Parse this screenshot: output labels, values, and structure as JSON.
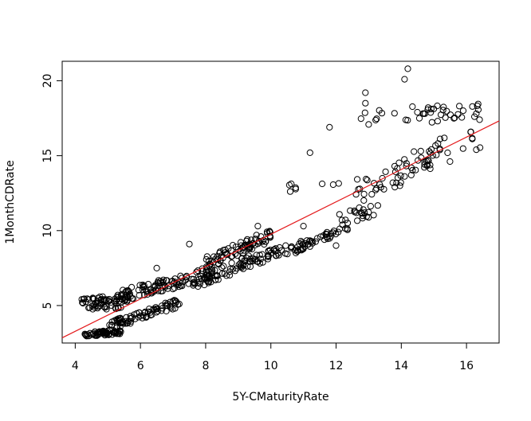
{
  "chart_data": {
    "type": "scatter",
    "xlabel": "5Y-CMaturityRate",
    "ylabel": "1MonthCDRate",
    "xlim": [
      3.6,
      17.0
    ],
    "ylim": [
      2.5,
      21.3
    ],
    "xticks": [
      4,
      6,
      8,
      10,
      12,
      14,
      16
    ],
    "yticks": [
      5,
      10,
      15,
      20
    ],
    "grid": false,
    "point_marker": "open-circle",
    "regression_line": {
      "color": "#e41a1c",
      "intercept": -1.04,
      "slope": 1.08
    },
    "clusters": [
      {
        "x": [
          4.2,
          5.4
        ],
        "y_at_x0": 3.05,
        "y_at_x1": 3.25,
        "spread": 0.15,
        "n": 60
      },
      {
        "x": [
          5.0,
          7.2
        ],
        "y_at_x0": 3.6,
        "y_at_x1": 5.2,
        "spread": 0.3,
        "n": 80
      },
      {
        "x": [
          4.2,
          5.6
        ],
        "y_at_x0": 5.3,
        "y_at_x1": 5.5,
        "spread": 0.25,
        "n": 45
      },
      {
        "x": [
          4.4,
          5.4
        ],
        "y_at_x0": 4.9,
        "y_at_x1": 4.9,
        "spread": 0.15,
        "n": 20
      },
      {
        "x": [
          5.4,
          8.2
        ],
        "y_at_x0": 5.6,
        "y_at_x1": 7.2,
        "spread": 0.45,
        "n": 110
      },
      {
        "x": [
          7.6,
          9.6
        ],
        "y_at_x0": 6.4,
        "y_at_x1": 8.2,
        "spread": 0.4,
        "n": 60
      },
      {
        "x": [
          8.0,
          10.0
        ],
        "y_at_x0": 7.8,
        "y_at_x1": 9.7,
        "spread": 0.45,
        "n": 80
      },
      {
        "x": [
          9.4,
          11.0
        ],
        "y_at_x0": 8.0,
        "y_at_x1": 9.0,
        "spread": 0.35,
        "n": 45
      },
      {
        "x": [
          10.8,
          12.4
        ],
        "y_at_x0": 8.8,
        "y_at_x1": 10.3,
        "spread": 0.3,
        "n": 40
      },
      {
        "x": [
          12.0,
          13.4
        ],
        "y_at_x0": 10.6,
        "y_at_x1": 11.6,
        "spread": 0.45,
        "n": 22
      },
      {
        "x": [
          10.4,
          12.2
        ],
        "y_at_x0": 12.8,
        "y_at_x1": 13.2,
        "spread": 0.3,
        "n": 8
      },
      {
        "x": [
          12.6,
          15.2
        ],
        "y_at_x0": 12.6,
        "y_at_x1": 15.0,
        "spread": 0.9,
        "n": 55
      },
      {
        "x": [
          12.6,
          16.4
        ],
        "y_at_x0": 17.4,
        "y_at_x1": 18.0,
        "spread": 0.6,
        "n": 40
      },
      {
        "x": [
          14.2,
          16.5
        ],
        "y_at_x0": 14.8,
        "y_at_x1": 16.0,
        "spread": 0.9,
        "n": 14
      }
    ],
    "outliers": [
      {
        "x": 14.1,
        "y": 20.1
      },
      {
        "x": 14.2,
        "y": 20.8
      },
      {
        "x": 11.8,
        "y": 16.9
      },
      {
        "x": 11.2,
        "y": 15.2
      },
      {
        "x": 12.9,
        "y": 19.2
      },
      {
        "x": 12.9,
        "y": 18.5
      },
      {
        "x": 12.0,
        "y": 9.0
      },
      {
        "x": 6.5,
        "y": 7.5
      },
      {
        "x": 7.5,
        "y": 9.1
      },
      {
        "x": 9.6,
        "y": 10.3
      },
      {
        "x": 11.0,
        "y": 10.3
      },
      {
        "x": 15.9,
        "y": 18.0
      },
      {
        "x": 16.3,
        "y": 17.8
      },
      {
        "x": 16.3,
        "y": 15.4
      },
      {
        "x": 16.4,
        "y": 17.4
      }
    ]
  }
}
